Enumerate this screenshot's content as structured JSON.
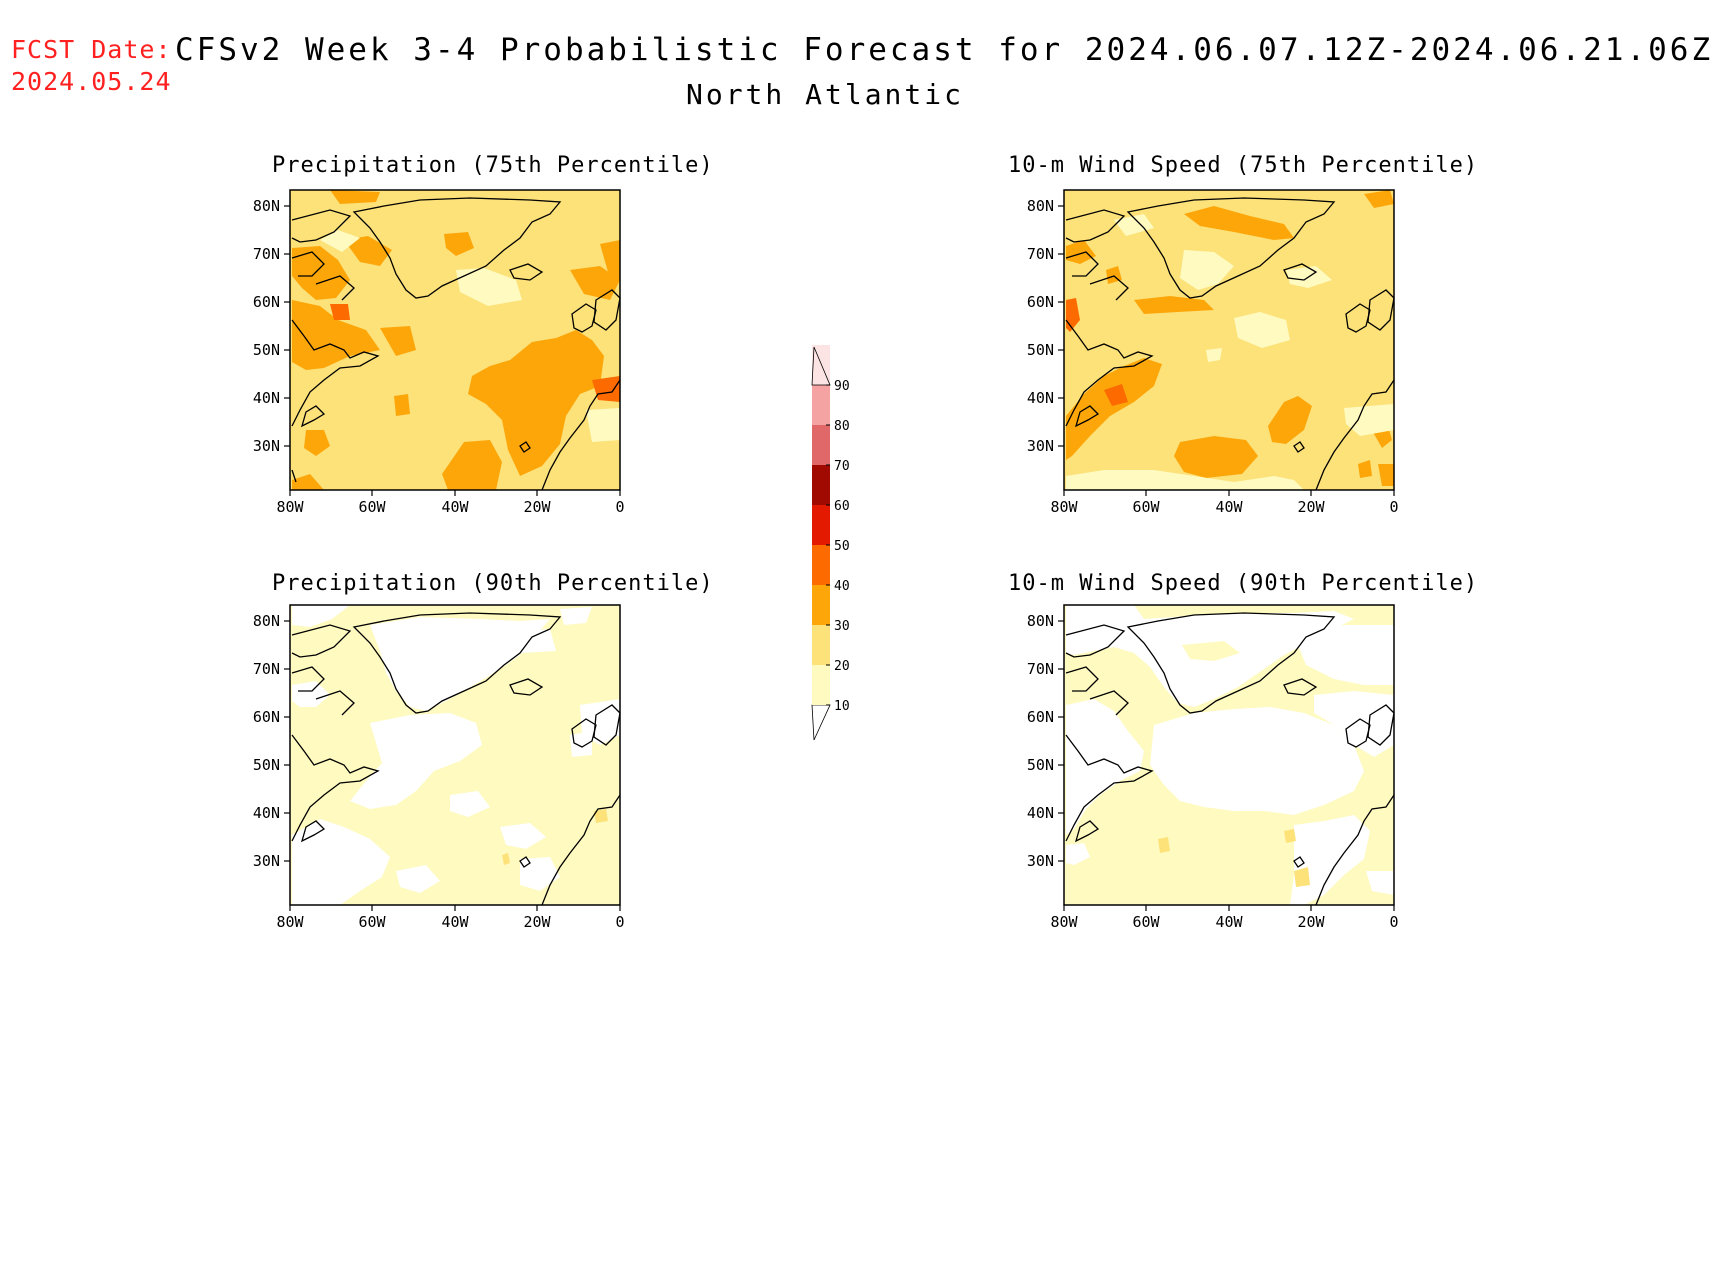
{
  "header": {
    "fcst_label": "FCST Date:",
    "fcst_date": "2024.05.24",
    "title": "CFSv2 Week 3-4 Probabilistic Forecast for 2024.06.07.12Z-2024.06.21.06Z",
    "region": "North Atlantic"
  },
  "axes": {
    "lat_labels": [
      "80N",
      "70N",
      "60N",
      "50N",
      "40N",
      "30N"
    ],
    "lon_labels": [
      "80W",
      "60W",
      "40W",
      "20W",
      "0"
    ]
  },
  "panels": [
    {
      "title": "Precipitation (75th Percentile)",
      "background": "#fde27a"
    },
    {
      "title": "10-m Wind Speed (75th Percentile)",
      "background": "#fde27a"
    },
    {
      "title": "Precipitation (90th Percentile)",
      "background": "#fefac0"
    },
    {
      "title": "10-m Wind Speed (90th Percentile)",
      "background": "#fefac0"
    }
  ],
  "colorbar": {
    "levels": [
      "10",
      "20",
      "30",
      "40",
      "50",
      "60",
      "70",
      "80",
      "90"
    ],
    "colors": [
      "#fefac0",
      "#fde27a",
      "#fda60a",
      "#fc6a00",
      "#e41a00",
      "#a00a00",
      "#e06868",
      "#f4a2a2",
      "#fde4e4"
    ]
  }
}
